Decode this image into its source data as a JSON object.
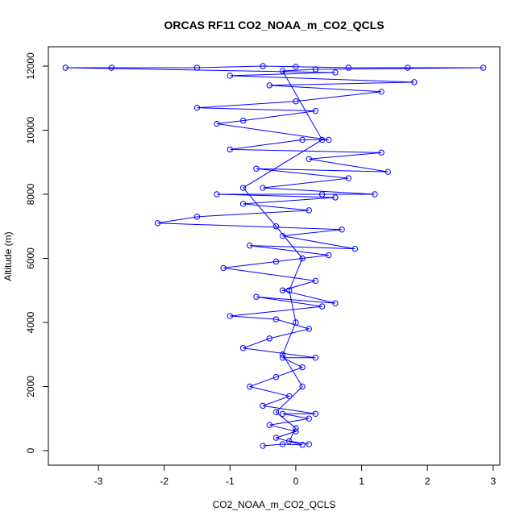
{
  "chart_data": {
    "type": "scatter",
    "title": "ORCAS RF11 CO2_NOAA_m_CO2_QCLS",
    "x_label": "CO2_NOAA_m_CO2_QCLS",
    "y_label": "Altitude (m)",
    "color": "#0000ff",
    "connect_points": true,
    "x": [
      -0.5,
      -0.2,
      0.1,
      -0.3,
      0.0,
      -0.4,
      0.2,
      -0.2,
      0.3,
      -0.5,
      -0.1,
      -0.7,
      -0.3,
      0.1,
      -0.2,
      0.3,
      -0.8,
      -0.4,
      0.2,
      -0.3,
      -1.0,
      0.4,
      -0.6,
      0.6,
      -0.2,
      0.3,
      -1.1,
      -0.3,
      0.5,
      -0.7,
      0.9,
      -0.2,
      0.7,
      -2.1,
      -1.5,
      0.2,
      -0.8,
      0.6,
      -1.2,
      0.4,
      1.2,
      -0.5,
      0.8,
      -0.6,
      1.4,
      0.2,
      1.3,
      -1.0,
      0.1,
      0.5,
      -1.2,
      -0.8,
      0.3,
      -1.5,
      0.0,
      1.3,
      -0.4,
      1.8,
      -1.0,
      0.6,
      -3.5,
      -2.8,
      -1.5,
      -0.5,
      0.0,
      0.8,
      1.7,
      2.85,
      0.3,
      -0.2,
      0.4,
      -0.8,
      -0.3,
      0.1,
      -0.1,
      0.0,
      -0.2,
      0.1,
      -0.3,
      0.0,
      -0.1,
      0.2
    ],
    "values": [
      150,
      200,
      180,
      400,
      600,
      800,
      1000,
      1150,
      1150,
      1400,
      1700,
      2000,
      2300,
      2600,
      2900,
      2900,
      3200,
      3500,
      3800,
      4100,
      4200,
      4500,
      4800,
      4600,
      5000,
      5300,
      5700,
      5900,
      6100,
      6400,
      6300,
      6700,
      6900,
      7100,
      7300,
      7500,
      7700,
      7900,
      8000,
      8000,
      8000,
      8200,
      8500,
      8800,
      8700,
      9100,
      9300,
      9400,
      9700,
      9700,
      10200,
      10300,
      10600,
      10700,
      10900,
      11200,
      11400,
      11500,
      11700,
      11800,
      11950,
      11950,
      11950,
      12000,
      11980,
      11950,
      11950,
      11950,
      11900,
      11850,
      9700,
      8200,
      7000,
      6000,
      5000,
      4000,
      3000,
      2000,
      1200,
      700,
      300,
      200
    ],
    "xlim": [
      -3.76,
      3.1
    ],
    "xticks": [
      -3,
      -2,
      -1,
      0,
      1,
      2,
      3
    ],
    "ylim": [
      -453,
      12604
    ],
    "yticks": [
      0,
      2000,
      4000,
      6000,
      8000,
      10000,
      12000
    ]
  }
}
